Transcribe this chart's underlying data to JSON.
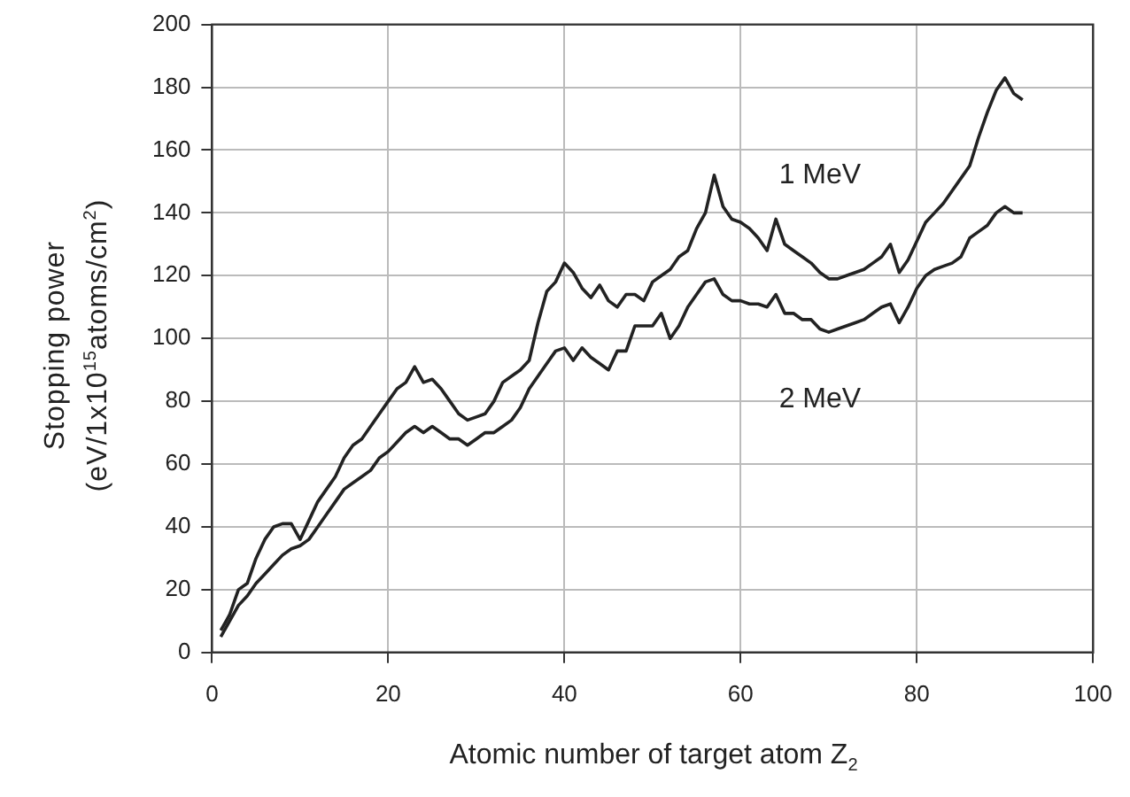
{
  "chart_data": {
    "type": "line",
    "xlabel": "Atomic number of target atom Z$_{2}$",
    "ylabel": "Stopping power\n(eV/1x10$^{15}$atoms/cm$^{2}$)",
    "x": [
      1,
      2,
      3,
      4,
      5,
      6,
      7,
      8,
      9,
      10,
      11,
      12,
      13,
      14,
      15,
      16,
      17,
      18,
      19,
      20,
      21,
      22,
      23,
      24,
      25,
      26,
      27,
      28,
      29,
      30,
      31,
      32,
      33,
      34,
      35,
      36,
      37,
      38,
      39,
      40,
      41,
      42,
      43,
      44,
      45,
      46,
      47,
      48,
      49,
      50,
      51,
      52,
      53,
      54,
      55,
      56,
      57,
      58,
      59,
      60,
      61,
      62,
      63,
      64,
      65,
      66,
      67,
      68,
      69,
      70,
      71,
      72,
      73,
      74,
      75,
      76,
      77,
      78,
      79,
      80,
      81,
      82,
      83,
      84,
      85,
      86,
      87,
      88,
      89,
      90,
      91,
      92
    ],
    "series": [
      {
        "name": "1 MeV",
        "color": "#222222",
        "values": [
          7,
          12,
          20,
          22,
          30,
          36,
          40,
          41,
          41,
          36,
          42,
          48,
          52,
          56,
          62,
          66,
          68,
          72,
          76,
          80,
          84,
          86,
          91,
          86,
          87,
          84,
          80,
          76,
          74,
          75,
          76,
          80,
          86,
          88,
          90,
          93,
          105,
          115,
          118,
          124,
          121,
          116,
          113,
          117,
          112,
          110,
          114,
          114,
          112,
          118,
          120,
          122,
          126,
          128,
          135,
          140,
          152,
          142,
          138,
          137,
          135,
          132,
          128,
          138,
          130,
          128,
          126,
          124,
          121,
          119,
          119,
          120,
          121,
          122,
          124,
          126,
          130,
          121,
          125,
          131,
          137,
          140,
          143,
          147,
          151,
          155,
          164,
          172,
          179,
          183,
          178,
          176
        ]
      },
      {
        "name": "2 MeV",
        "color": "#222222",
        "values": [
          5,
          10,
          15,
          18,
          22,
          25,
          28,
          31,
          33,
          34,
          36,
          40,
          44,
          48,
          52,
          54,
          56,
          58,
          62,
          64,
          67,
          70,
          72,
          70,
          72,
          70,
          68,
          68,
          66,
          68,
          70,
          70,
          72,
          74,
          78,
          84,
          88,
          92,
          96,
          97,
          93,
          97,
          94,
          92,
          90,
          96,
          96,
          104,
          104,
          104,
          108,
          100,
          104,
          110,
          114,
          118,
          119,
          114,
          112,
          112,
          111,
          111,
          110,
          114,
          108,
          108,
          106,
          106,
          103,
          102,
          103,
          104,
          105,
          106,
          108,
          110,
          111,
          105,
          110,
          116,
          120,
          122,
          123,
          124,
          126,
          132,
          134,
          136,
          140,
          142,
          140,
          140
        ]
      }
    ],
    "xlim": [
      0,
      100
    ],
    "xticks": [
      0,
      20,
      40,
      60,
      80,
      100
    ],
    "ylim": [
      0,
      200
    ],
    "yticks": [
      0,
      20,
      40,
      60,
      80,
      100,
      120,
      140,
      160,
      180,
      200
    ],
    "grid": true,
    "legend": false,
    "marker": "none",
    "line_style": "solid"
  }
}
